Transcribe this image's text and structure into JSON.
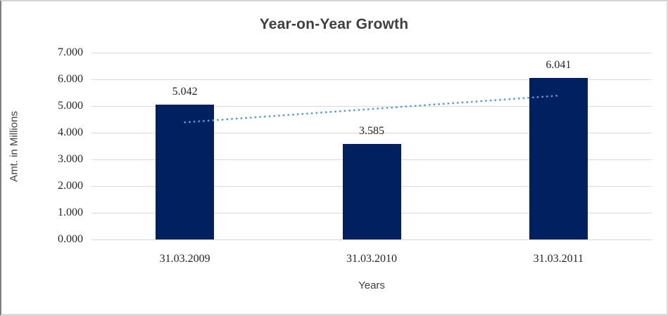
{
  "chart_data": {
    "type": "bar",
    "title": "Year-on-Year Growth",
    "xlabel": "Years",
    "ylabel": "Amt. in Millions",
    "categories": [
      "31.03.2009",
      "31.03.2010",
      "31.03.2011"
    ],
    "values": [
      5.042,
      3.585,
      6.041
    ],
    "data_labels": [
      "5.042",
      "3.585",
      "6.041"
    ],
    "yticks": [
      "0.000",
      "1.000",
      "2.000",
      "3.000",
      "4.000",
      "5.000",
      "6.000",
      "7.000"
    ],
    "ylim": [
      0,
      7
    ],
    "grid": true,
    "legend_position": "none",
    "trendline": {
      "type": "linear",
      "style": "dotted",
      "start_value": 4.39,
      "end_value": 5.39,
      "color": "#5B9BD5"
    },
    "colors": {
      "bar": "#002060",
      "gridline": "#D9D9D9",
      "title_text": "#3F3F3F",
      "label_text": "#262626"
    }
  }
}
